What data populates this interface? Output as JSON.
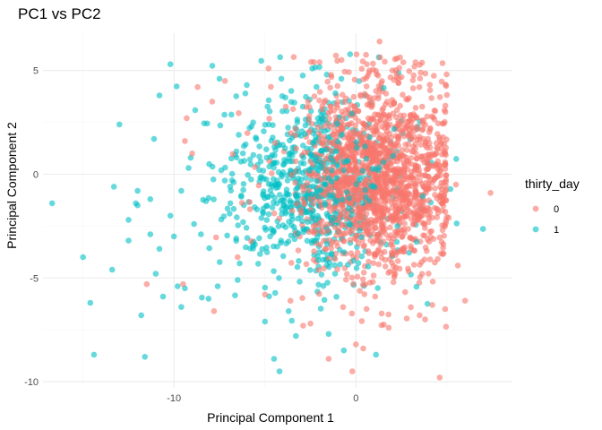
{
  "chart_data": {
    "type": "scatter",
    "title": "PC1 vs PC2",
    "xlabel": "Principal Component 1",
    "ylabel": "Principal Component 2",
    "xlim": [
      -17.2,
      8.6
    ],
    "ylim": [
      -10.3,
      6.8
    ],
    "x_ticks": [
      -10,
      0
    ],
    "x_minor_ticks": [
      -15,
      -5,
      5
    ],
    "y_ticks": [
      -10,
      -5,
      0,
      5
    ],
    "y_minor_ticks": [
      -7.5,
      -2.5,
      2.5
    ],
    "grid": true,
    "legend": {
      "title": "thirty_day",
      "position": "right"
    },
    "point_opacity": 0.6,
    "series": [
      {
        "name": "0",
        "color": "#F8766D",
        "cluster": {
          "cx": 1.2,
          "cy": 0.0,
          "sx": 2.1,
          "sy": 2.3,
          "count": 1600,
          "seed": 7
        },
        "points": [
          {
            "x": 1.3,
            "y": 6.4
          },
          {
            "x": -4.8,
            "y": 5.1
          },
          {
            "x": -7.2,
            "y": 4.5
          },
          {
            "x": -7.9,
            "y": 3.5
          },
          {
            "x": -9.3,
            "y": 2.7
          },
          {
            "x": -9.4,
            "y": 1.6
          },
          {
            "x": -9.0,
            "y": 1.0
          },
          {
            "x": -11.5,
            "y": -5.3
          },
          {
            "x": -9.5,
            "y": -5.3
          },
          {
            "x": -7.8,
            "y": -6.6
          },
          {
            "x": -2.5,
            "y": -7.2
          },
          {
            "x": -2.9,
            "y": -7.3
          },
          {
            "x": 0.0,
            "y": -8.2
          },
          {
            "x": 0.4,
            "y": -8.4
          },
          {
            "x": -1.5,
            "y": -8.9
          },
          {
            "x": -0.2,
            "y": -9.5
          },
          {
            "x": 4.6,
            "y": -9.8
          },
          {
            "x": 7.4,
            "y": -0.9
          },
          {
            "x": 5.5,
            "y": -0.5
          },
          {
            "x": 5.6,
            "y": -4.4
          },
          {
            "x": 6.0,
            "y": -6.1
          },
          {
            "x": 4.9,
            "y": -6.5
          },
          {
            "x": 4.2,
            "y": -6.3
          },
          {
            "x": 4.7,
            "y": 1.5
          },
          {
            "x": 4.9,
            "y": 0.5
          },
          {
            "x": 5.1,
            "y": -2.1
          },
          {
            "x": 3.5,
            "y": -6.8
          },
          {
            "x": 1.8,
            "y": -7.4
          },
          {
            "x": 3.8,
            "y": -7.0
          },
          {
            "x": -3.6,
            "y": -6.1
          },
          {
            "x": -5.0,
            "y": -5.8
          },
          {
            "x": 0.6,
            "y": 5.3
          },
          {
            "x": -2.0,
            "y": 5.4
          },
          {
            "x": -8.7,
            "y": 4.2
          },
          {
            "x": 2.0,
            "y": 5.0
          },
          {
            "x": -6.5,
            "y": -4.0
          }
        ]
      },
      {
        "name": "1",
        "color": "#00BFC4",
        "cluster": {
          "cx": -2.5,
          "cy": -0.6,
          "sx": 2.6,
          "sy": 2.3,
          "count": 650,
          "seed": 21
        },
        "points": [
          {
            "x": -16.7,
            "y": -1.4
          },
          {
            "x": -15.0,
            "y": -4.0
          },
          {
            "x": -14.6,
            "y": -6.2
          },
          {
            "x": -14.4,
            "y": -8.7
          },
          {
            "x": -13.4,
            "y": -4.6
          },
          {
            "x": -13.0,
            "y": 2.4
          },
          {
            "x": -12.5,
            "y": -3.2
          },
          {
            "x": -11.8,
            "y": -6.8
          },
          {
            "x": -11.6,
            "y": -8.8
          },
          {
            "x": -11.1,
            "y": 1.7
          },
          {
            "x": -10.8,
            "y": 3.8
          },
          {
            "x": -10.2,
            "y": 5.3
          },
          {
            "x": -11.0,
            "y": -4.8
          },
          {
            "x": -10.6,
            "y": -5.9
          },
          {
            "x": -10.0,
            "y": -3.0
          },
          {
            "x": -9.6,
            "y": -6.4
          },
          {
            "x": -9.8,
            "y": -5.4
          },
          {
            "x": -9.4,
            "y": -5.5
          },
          {
            "x": -8.9,
            "y": -2.4
          },
          {
            "x": -8.1,
            "y": -6.0
          },
          {
            "x": -7.6,
            "y": -5.4
          },
          {
            "x": -6.5,
            "y": -5.1
          },
          {
            "x": -5.0,
            "y": -7.1
          },
          {
            "x": -3.7,
            "y": -6.6
          },
          {
            "x": -4.5,
            "y": -8.9
          },
          {
            "x": -4.2,
            "y": -9.5
          },
          {
            "x": -3.3,
            "y": -7.8
          },
          {
            "x": -1.5,
            "y": -7.7
          },
          {
            "x": 1.1,
            "y": -8.7
          },
          {
            "x": -12.0,
            "y": -1.5
          },
          {
            "x": -13.3,
            "y": -0.6
          },
          {
            "x": -12.0,
            "y": -0.8
          },
          {
            "x": -12.5,
            "y": -2.2
          },
          {
            "x": -12.1,
            "y": -1.4
          },
          {
            "x": -11.3,
            "y": -2.9
          },
          {
            "x": -10.8,
            "y": -3.6
          },
          {
            "x": -9.6,
            "y": -0.8
          },
          {
            "x": -9.2,
            "y": 0.3
          },
          {
            "x": -7.5,
            "y": 4.6
          },
          {
            "x": -6.0,
            "y": 4.3
          },
          {
            "x": -4.1,
            "y": 4.6
          },
          {
            "x": -2.4,
            "y": 5.1
          },
          {
            "x": -1.6,
            "y": 4.8
          },
          {
            "x": -0.8,
            "y": 4.6
          },
          {
            "x": -11.3,
            "y": -1.2
          },
          {
            "x": -10.2,
            "y": -2.0
          }
        ]
      }
    ]
  }
}
